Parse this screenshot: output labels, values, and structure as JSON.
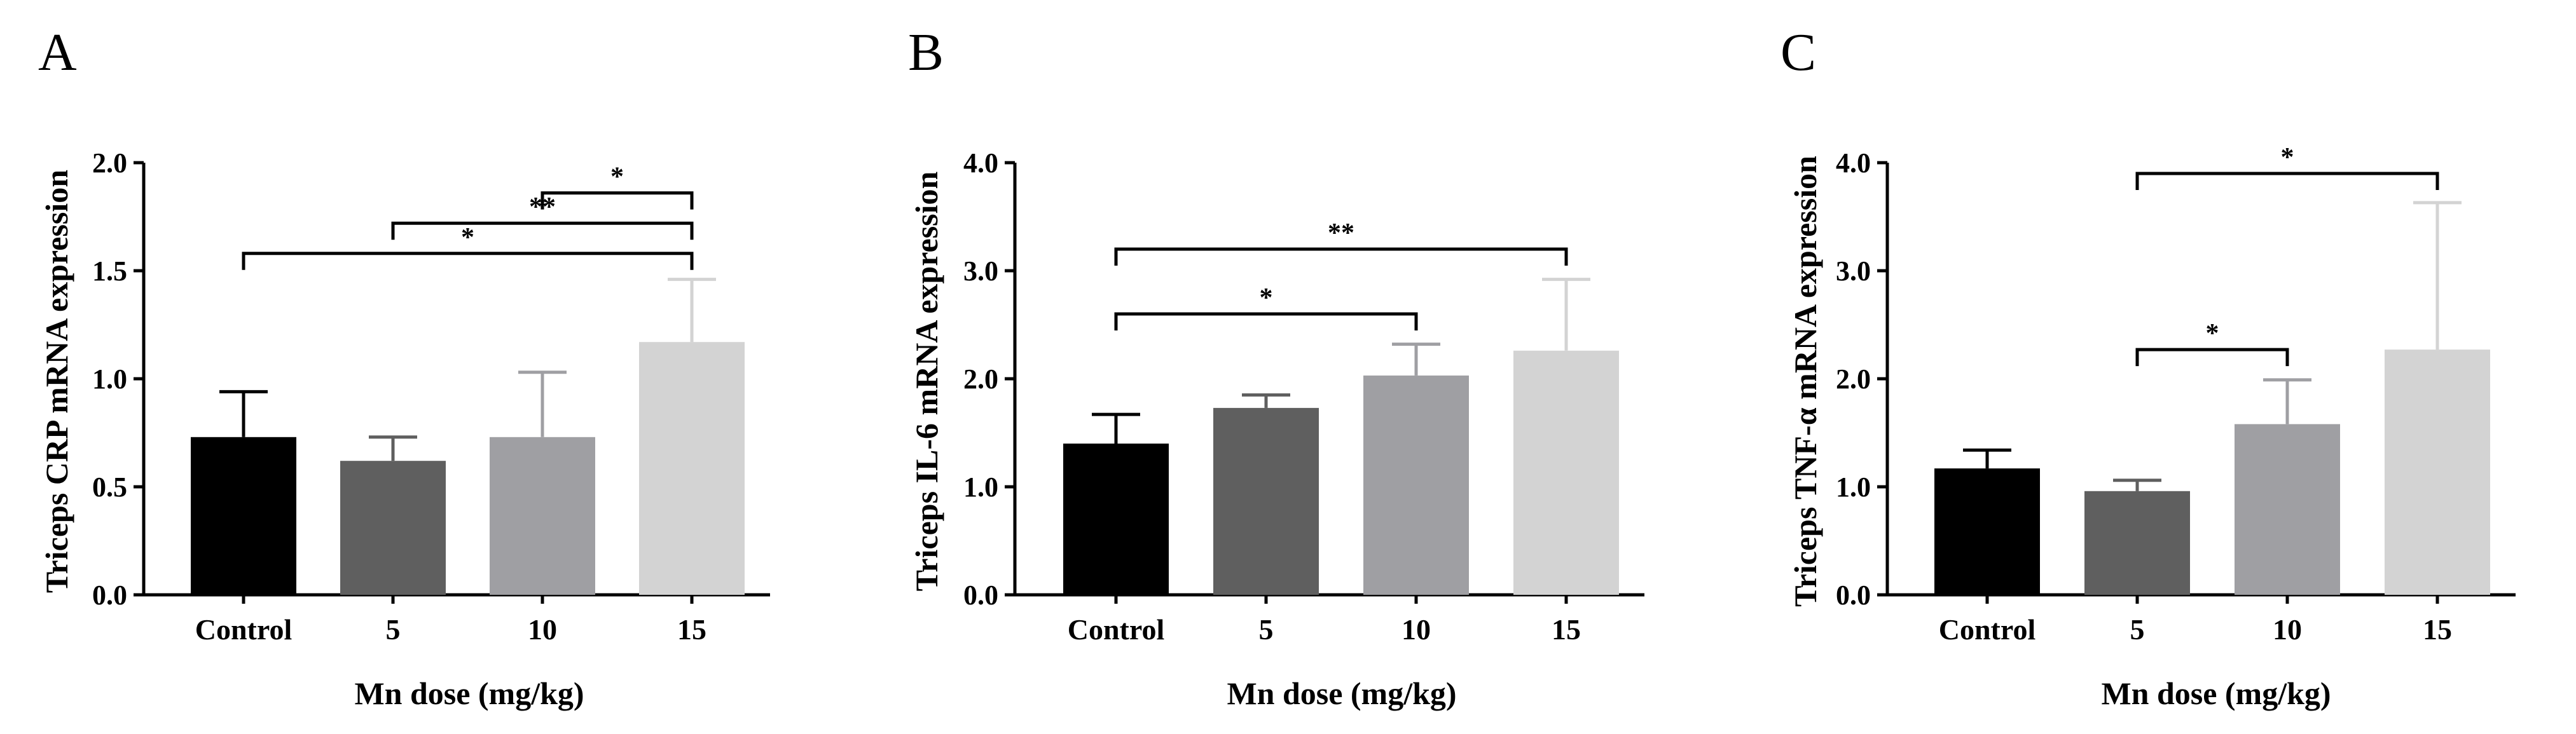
{
  "chart_data": [
    {
      "panel": "A",
      "type": "bar",
      "categories": [
        "Control",
        "5",
        "10",
        "15"
      ],
      "values": [
        0.73,
        0.62,
        0.73,
        1.17
      ],
      "errors": [
        0.21,
        0.11,
        0.3,
        0.29
      ],
      "colors": [
        "#000000",
        "#5f5f5f",
        "#9f9fa3",
        "#d3d3d3"
      ],
      "ylabel": "Triceps CRP mRNA expression",
      "xlabel": "Mn dose (mg/kg)",
      "ylim": [
        0,
        2.0
      ],
      "yticks": [
        0.0,
        0.5,
        1.0,
        1.5,
        2.0
      ],
      "ytick_labels": [
        "0.0",
        "0.5",
        "1.0",
        "1.5",
        "2.0"
      ],
      "significance": [
        {
          "from": 0,
          "to": 3,
          "label": "*",
          "y": 1.58
        },
        {
          "from": 1,
          "to": 3,
          "label": "**",
          "y": 1.72
        },
        {
          "from": 2,
          "to": 3,
          "label": "*",
          "y": 1.86
        }
      ]
    },
    {
      "panel": "B",
      "type": "bar",
      "categories": [
        "Control",
        "5",
        "10",
        "15"
      ],
      "values": [
        1.4,
        1.73,
        2.03,
        2.26
      ],
      "errors": [
        0.27,
        0.12,
        0.29,
        0.66
      ],
      "colors": [
        "#000000",
        "#5f5f5f",
        "#9f9fa3",
        "#d3d3d3"
      ],
      "ylabel": "Triceps IL-6 mRNA expression",
      "xlabel": "Mn dose (mg/kg)",
      "ylim": [
        0,
        4.0
      ],
      "yticks": [
        0.0,
        1.0,
        2.0,
        3.0,
        4.0
      ],
      "ytick_labels": [
        "0.0",
        "1.0",
        "2.0",
        "3.0",
        "4.0"
      ],
      "significance": [
        {
          "from": 0,
          "to": 2,
          "label": "*",
          "y": 2.6
        },
        {
          "from": 0,
          "to": 3,
          "label": "**",
          "y": 3.2
        }
      ]
    },
    {
      "panel": "C",
      "type": "bar",
      "categories": [
        "Control",
        "5",
        "10",
        "15"
      ],
      "values": [
        1.17,
        0.96,
        1.58,
        2.27
      ],
      "errors": [
        0.17,
        0.1,
        0.41,
        1.36
      ],
      "colors": [
        "#000000",
        "#5f5f5f",
        "#9f9fa3",
        "#d3d3d3"
      ],
      "ylabel": "Triceps TNF-α mRNA expression",
      "xlabel": "Mn dose (mg/kg)",
      "ylim": [
        0,
        4.0
      ],
      "yticks": [
        0.0,
        1.0,
        2.0,
        3.0,
        4.0
      ],
      "ytick_labels": [
        "0.0",
        "1.0",
        "2.0",
        "3.0",
        "4.0"
      ],
      "significance": [
        {
          "from": 1,
          "to": 2,
          "label": "*",
          "y": 2.27
        },
        {
          "from": 1,
          "to": 3,
          "label": "*",
          "y": 3.9
        }
      ]
    }
  ]
}
